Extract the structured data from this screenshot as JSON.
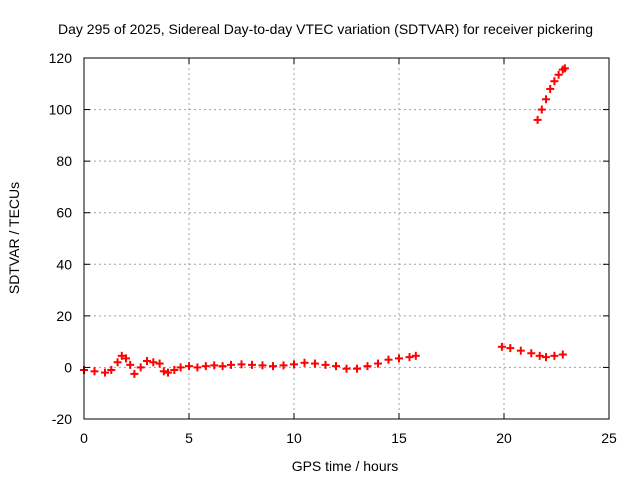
{
  "chart_data": {
    "type": "scatter",
    "title": "Day 295 of 2025, Sidereal Day-to-day VTEC variation (SDTVAR) for receiver pickering",
    "xlabel": "GPS time / hours",
    "ylabel": "SDTVAR / TECUs",
    "xlim": [
      0,
      25
    ],
    "ylim": [
      -20,
      120
    ],
    "x_ticks": [
      "0",
      "5",
      "10",
      "15",
      "20",
      "25"
    ],
    "y_ticks": [
      "-20",
      "0",
      "20",
      "40",
      "60",
      "80",
      "100",
      "120"
    ],
    "grid": true,
    "series": [
      {
        "color": "#ff0000",
        "marker": "plus",
        "points": [
          [
            0.0,
            -1.0
          ],
          [
            0.5,
            -1.5
          ],
          [
            1.0,
            -2.0
          ],
          [
            1.3,
            -1.0
          ],
          [
            1.6,
            2.0
          ],
          [
            1.8,
            4.5
          ],
          [
            2.0,
            3.5
          ],
          [
            2.2,
            1.0
          ],
          [
            2.4,
            -2.5
          ],
          [
            2.7,
            0.0
          ],
          [
            3.0,
            2.5
          ],
          [
            3.3,
            2.0
          ],
          [
            3.6,
            1.5
          ],
          [
            3.8,
            -1.5
          ],
          [
            4.0,
            -2.0
          ],
          [
            4.3,
            -1.0
          ],
          [
            4.6,
            0.0
          ],
          [
            5.0,
            0.5
          ],
          [
            5.4,
            0.0
          ],
          [
            5.8,
            0.5
          ],
          [
            6.2,
            0.8
          ],
          [
            6.6,
            0.5
          ],
          [
            7.0,
            1.0
          ],
          [
            7.5,
            1.2
          ],
          [
            8.0,
            1.0
          ],
          [
            8.5,
            0.8
          ],
          [
            9.0,
            0.5
          ],
          [
            9.5,
            0.8
          ],
          [
            10.0,
            1.2
          ],
          [
            10.5,
            1.8
          ],
          [
            11.0,
            1.5
          ],
          [
            11.5,
            1.0
          ],
          [
            12.0,
            0.5
          ],
          [
            12.5,
            -0.5
          ],
          [
            13.0,
            -0.5
          ],
          [
            13.5,
            0.5
          ],
          [
            14.0,
            1.5
          ],
          [
            14.5,
            3.0
          ],
          [
            15.0,
            3.5
          ],
          [
            15.5,
            4.0
          ],
          [
            15.8,
            4.5
          ],
          [
            19.9,
            8.0
          ],
          [
            20.3,
            7.5
          ],
          [
            20.8,
            6.5
          ],
          [
            21.3,
            5.5
          ],
          [
            21.7,
            4.5
          ],
          [
            22.0,
            4.0
          ],
          [
            22.4,
            4.5
          ],
          [
            22.8,
            5.0
          ],
          [
            21.6,
            96.0
          ],
          [
            21.8,
            100.0
          ],
          [
            22.0,
            104.0
          ],
          [
            22.2,
            108.0
          ],
          [
            22.4,
            111.0
          ],
          [
            22.6,
            113.5
          ],
          [
            22.8,
            115.5
          ],
          [
            22.9,
            116.0
          ]
        ]
      }
    ]
  }
}
